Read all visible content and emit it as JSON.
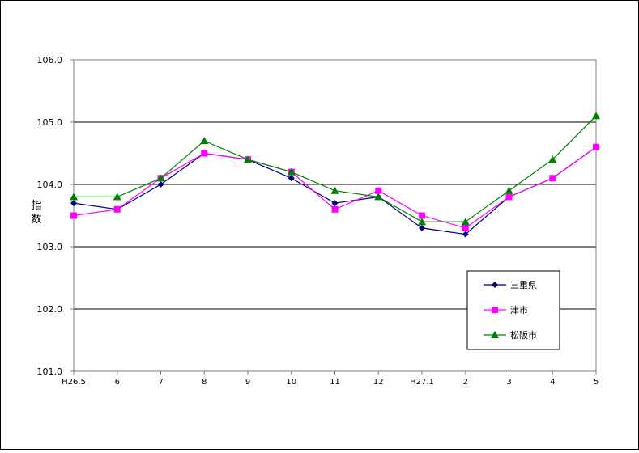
{
  "chart_data": {
    "type": "line",
    "title": "",
    "xlabel": "",
    "ylabel": "指数",
    "ylim": [
      101.0,
      106.0
    ],
    "y_ticks": [
      "106.0",
      "105.0",
      "104.0",
      "103.0",
      "102.0",
      "101.0"
    ],
    "grid": "horizontal",
    "legend_position": "bottom-right",
    "categories": [
      "H26.5",
      "6",
      "7",
      "8",
      "9",
      "10",
      "11",
      "12",
      "H27.1",
      "2",
      "3",
      "4",
      "5"
    ],
    "series": [
      {
        "name": "三重県",
        "color": "#000080",
        "marker": "diamond",
        "values": [
          103.7,
          103.6,
          104.0,
          104.5,
          104.4,
          104.1,
          103.7,
          103.8,
          103.3,
          103.2,
          103.8,
          104.1,
          104.6
        ]
      },
      {
        "name": "津市",
        "color": "#ff00ff",
        "marker": "square",
        "values": [
          103.5,
          103.6,
          104.1,
          104.5,
          104.4,
          104.2,
          103.6,
          103.9,
          103.5,
          103.3,
          103.8,
          104.1,
          104.6
        ]
      },
      {
        "name": "松阪市",
        "color": "#008000",
        "marker": "triangle",
        "values": [
          103.8,
          103.8,
          104.1,
          104.7,
          104.4,
          104.2,
          103.9,
          103.8,
          103.4,
          103.4,
          103.9,
          104.4,
          105.1
        ]
      }
    ]
  }
}
